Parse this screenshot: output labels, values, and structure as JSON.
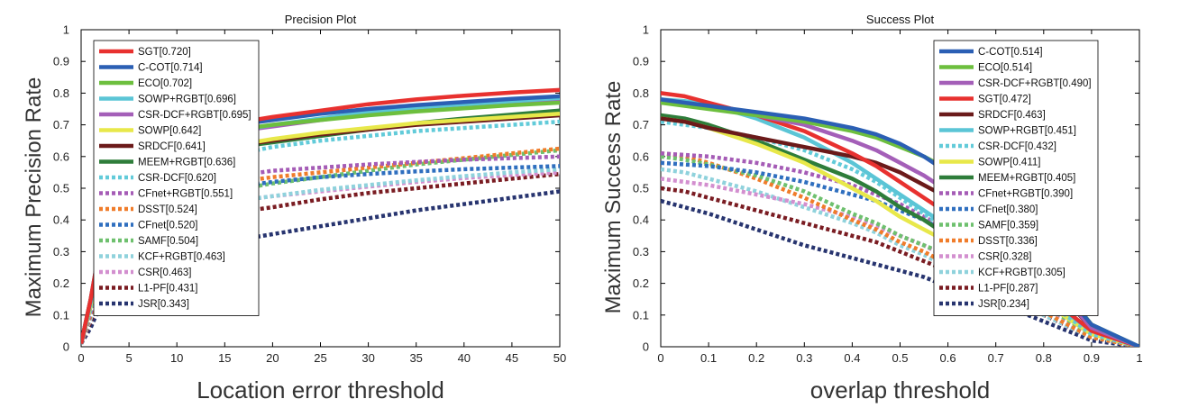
{
  "chart_data": [
    {
      "type": "line",
      "title": "Precision Plot",
      "xlabel": "Location error threshold",
      "ylabel": "Maximum Precision Rate",
      "xlim": [
        0,
        50
      ],
      "ylim": [
        0,
        1
      ],
      "xticks": [
        0,
        5,
        10,
        15,
        20,
        25,
        30,
        35,
        40,
        45,
        50
      ],
      "yticks": [
        0,
        0.1,
        0.2,
        0.3,
        0.4,
        0.5,
        0.6,
        0.7,
        0.8,
        0.9,
        1
      ],
      "x": [
        0,
        1,
        2,
        5,
        10,
        15,
        20,
        25,
        30,
        35,
        40,
        45,
        50
      ],
      "legend_position": "top-left",
      "series": [
        {
          "name": "SGT[0.720]",
          "color": "#e8312f",
          "dashed": false,
          "values": [
            0.01,
            0.15,
            0.32,
            0.55,
            0.66,
            0.7,
            0.725,
            0.745,
            0.765,
            0.78,
            0.792,
            0.802,
            0.81
          ]
        },
        {
          "name": "C-COT[0.714]",
          "color": "#2b5fb4",
          "dashed": false,
          "values": [
            0.01,
            0.15,
            0.32,
            0.54,
            0.65,
            0.695,
            0.715,
            0.735,
            0.75,
            0.762,
            0.772,
            0.782,
            0.79
          ]
        },
        {
          "name": "ECO[0.702]",
          "color": "#6dbf3e",
          "dashed": false,
          "values": [
            0.01,
            0.15,
            0.31,
            0.53,
            0.64,
            0.68,
            0.7,
            0.715,
            0.73,
            0.742,
            0.752,
            0.762,
            0.77
          ]
        },
        {
          "name": "SOWP+RGBT[0.696]",
          "color": "#5bc5d6",
          "dashed": false,
          "values": [
            0.01,
            0.14,
            0.3,
            0.52,
            0.63,
            0.675,
            0.7,
            0.72,
            0.74,
            0.755,
            0.765,
            0.775,
            0.785
          ]
        },
        {
          "name": "CSR-DCF+RGBT[0.695]",
          "color": "#a45fb8",
          "dashed": false,
          "values": [
            0.01,
            0.14,
            0.3,
            0.52,
            0.63,
            0.675,
            0.695,
            0.715,
            0.735,
            0.75,
            0.762,
            0.772,
            0.78
          ]
        },
        {
          "name": "SOWP[0.642]",
          "color": "#e8e84a",
          "dashed": false,
          "values": [
            0.01,
            0.13,
            0.28,
            0.49,
            0.59,
            0.63,
            0.655,
            0.675,
            0.69,
            0.705,
            0.715,
            0.725,
            0.735
          ]
        },
        {
          "name": "SRDCF[0.641]",
          "color": "#6b1a1a",
          "dashed": false,
          "values": [
            0.01,
            0.13,
            0.28,
            0.49,
            0.59,
            0.63,
            0.65,
            0.67,
            0.685,
            0.7,
            0.71,
            0.72,
            0.73
          ]
        },
        {
          "name": "MEEM+RGBT[0.636]",
          "color": "#2e7d3a",
          "dashed": false,
          "values": [
            0.01,
            0.13,
            0.27,
            0.48,
            0.58,
            0.625,
            0.645,
            0.665,
            0.685,
            0.705,
            0.72,
            0.732,
            0.745
          ]
        },
        {
          "name": "CSR-DCF[0.620]",
          "color": "#62cbd9",
          "dashed": true,
          "values": [
            0.01,
            0.12,
            0.26,
            0.46,
            0.56,
            0.6,
            0.63,
            0.65,
            0.665,
            0.68,
            0.69,
            0.7,
            0.71
          ]
        },
        {
          "name": "CFnet+RGBT[0.551]",
          "color": "#a55cb6",
          "dashed": true,
          "values": [
            0.01,
            0.11,
            0.23,
            0.41,
            0.5,
            0.535,
            0.555,
            0.565,
            0.575,
            0.583,
            0.59,
            0.595,
            0.6
          ]
        },
        {
          "name": "DSST[0.524]",
          "color": "#f07c2a",
          "dashed": true,
          "values": [
            0.01,
            0.1,
            0.22,
            0.39,
            0.48,
            0.515,
            0.535,
            0.55,
            0.565,
            0.58,
            0.595,
            0.61,
            0.625
          ]
        },
        {
          "name": "CFnet[0.520]",
          "color": "#2f6fbf",
          "dashed": true,
          "values": [
            0.01,
            0.1,
            0.22,
            0.39,
            0.47,
            0.5,
            0.52,
            0.535,
            0.545,
            0.553,
            0.56,
            0.565,
            0.57
          ]
        },
        {
          "name": "SAMF[0.504]",
          "color": "#6ec06e",
          "dashed": true,
          "values": [
            0.01,
            0.1,
            0.21,
            0.38,
            0.46,
            0.49,
            0.515,
            0.535,
            0.555,
            0.575,
            0.59,
            0.605,
            0.62
          ]
        },
        {
          "name": "KCF+RGBT[0.463]",
          "color": "#8fd2dc",
          "dashed": true,
          "values": [
            0.01,
            0.09,
            0.19,
            0.34,
            0.42,
            0.455,
            0.475,
            0.495,
            0.51,
            0.525,
            0.538,
            0.55,
            0.56
          ]
        },
        {
          "name": "CSR[0.463]",
          "color": "#d38fcf",
          "dashed": true,
          "values": [
            0.01,
            0.09,
            0.19,
            0.34,
            0.42,
            0.455,
            0.475,
            0.49,
            0.505,
            0.52,
            0.532,
            0.542,
            0.55
          ]
        },
        {
          "name": "L1-PF[0.431]",
          "color": "#7a1c22",
          "dashed": true,
          "values": [
            0.01,
            0.08,
            0.17,
            0.31,
            0.39,
            0.42,
            0.44,
            0.465,
            0.485,
            0.5,
            0.515,
            0.53,
            0.545
          ]
        },
        {
          "name": "JSR[0.343]",
          "color": "#27346f",
          "dashed": true,
          "values": [
            0.01,
            0.06,
            0.13,
            0.24,
            0.3,
            0.33,
            0.355,
            0.38,
            0.405,
            0.43,
            0.45,
            0.47,
            0.49
          ]
        }
      ]
    },
    {
      "type": "line",
      "title": "Success Plot",
      "xlabel": "overlap threshold",
      "ylabel": "Maximum Success Rate",
      "xlim": [
        0,
        1
      ],
      "ylim": [
        0,
        1
      ],
      "xticks": [
        0,
        0.1,
        0.2,
        0.3,
        0.4,
        0.5,
        0.6,
        0.7,
        0.8,
        0.9,
        1
      ],
      "yticks": [
        0,
        0.1,
        0.2,
        0.3,
        0.4,
        0.5,
        0.6,
        0.7,
        0.8,
        0.9,
        1
      ],
      "x": [
        0,
        0.05,
        0.1,
        0.2,
        0.3,
        0.4,
        0.45,
        0.5,
        0.55,
        0.6,
        0.7,
        0.8,
        0.9,
        1.0
      ],
      "legend_position": "top-right",
      "series": [
        {
          "name": "C-COT[0.514]",
          "color": "#2b5fb4",
          "dashed": false,
          "values": [
            0.78,
            0.77,
            0.76,
            0.74,
            0.72,
            0.69,
            0.67,
            0.64,
            0.6,
            0.55,
            0.43,
            0.25,
            0.07,
            0.0
          ]
        },
        {
          "name": "ECO[0.514]",
          "color": "#6dbf3e",
          "dashed": false,
          "values": [
            0.77,
            0.76,
            0.75,
            0.73,
            0.71,
            0.68,
            0.66,
            0.63,
            0.6,
            0.56,
            0.44,
            0.26,
            0.07,
            0.0
          ]
        },
        {
          "name": "CSR-DCF+RGBT[0.490]",
          "color": "#a45fb8",
          "dashed": false,
          "values": [
            0.77,
            0.765,
            0.755,
            0.73,
            0.7,
            0.65,
            0.62,
            0.58,
            0.54,
            0.49,
            0.38,
            0.23,
            0.06,
            0.0
          ]
        },
        {
          "name": "SGT[0.472]",
          "color": "#e8312f",
          "dashed": false,
          "values": [
            0.8,
            0.79,
            0.77,
            0.73,
            0.68,
            0.61,
            0.57,
            0.52,
            0.47,
            0.42,
            0.31,
            0.17,
            0.05,
            0.0
          ]
        },
        {
          "name": "SRDCF[0.463]",
          "color": "#6b1a1a",
          "dashed": false,
          "values": [
            0.72,
            0.71,
            0.69,
            0.66,
            0.63,
            0.6,
            0.58,
            0.55,
            0.51,
            0.47,
            0.37,
            0.22,
            0.06,
            0.0
          ]
        },
        {
          "name": "SOWP+RGBT[0.451]",
          "color": "#5bc5d6",
          "dashed": false,
          "values": [
            0.78,
            0.775,
            0.765,
            0.72,
            0.66,
            0.58,
            0.53,
            0.48,
            0.43,
            0.38,
            0.28,
            0.16,
            0.05,
            0.0
          ]
        },
        {
          "name": "CSR-DCF[0.432]",
          "color": "#62cbd9",
          "dashed": true,
          "values": [
            0.71,
            0.7,
            0.69,
            0.66,
            0.62,
            0.56,
            0.52,
            0.47,
            0.42,
            0.37,
            0.27,
            0.15,
            0.04,
            0.0
          ]
        },
        {
          "name": "SOWP[0.411]",
          "color": "#e8e84a",
          "dashed": false,
          "values": [
            0.72,
            0.71,
            0.69,
            0.64,
            0.58,
            0.5,
            0.46,
            0.41,
            0.37,
            0.33,
            0.25,
            0.14,
            0.04,
            0.0
          ]
        },
        {
          "name": "MEEM+RGBT[0.405]",
          "color": "#2e7d3a",
          "dashed": false,
          "values": [
            0.73,
            0.72,
            0.7,
            0.65,
            0.59,
            0.53,
            0.49,
            0.44,
            0.4,
            0.35,
            0.26,
            0.15,
            0.05,
            0.0
          ]
        },
        {
          "name": "CFnet+RGBT[0.390]",
          "color": "#a55cb6",
          "dashed": true,
          "values": [
            0.61,
            0.605,
            0.6,
            0.58,
            0.55,
            0.51,
            0.48,
            0.45,
            0.41,
            0.37,
            0.28,
            0.16,
            0.05,
            0.0
          ]
        },
        {
          "name": "CFnet[0.380]",
          "color": "#2f6fbf",
          "dashed": true,
          "values": [
            0.58,
            0.575,
            0.57,
            0.55,
            0.52,
            0.48,
            0.46,
            0.43,
            0.4,
            0.36,
            0.27,
            0.15,
            0.05,
            0.0
          ]
        },
        {
          "name": "SAMF[0.359]",
          "color": "#6ec06e",
          "dashed": true,
          "values": [
            0.6,
            0.59,
            0.575,
            0.54,
            0.49,
            0.42,
            0.39,
            0.35,
            0.32,
            0.29,
            0.22,
            0.13,
            0.04,
            0.0
          ]
        },
        {
          "name": "DSST[0.336]",
          "color": "#f07c2a",
          "dashed": true,
          "values": [
            0.61,
            0.6,
            0.58,
            0.53,
            0.47,
            0.4,
            0.37,
            0.33,
            0.3,
            0.26,
            0.19,
            0.11,
            0.03,
            0.0
          ]
        },
        {
          "name": "CSR[0.328]",
          "color": "#d38fcf",
          "dashed": true,
          "values": [
            0.53,
            0.52,
            0.51,
            0.48,
            0.45,
            0.41,
            0.38,
            0.35,
            0.32,
            0.28,
            0.21,
            0.12,
            0.04,
            0.0
          ]
        },
        {
          "name": "KCF+RGBT[0.305]",
          "color": "#8fd2dc",
          "dashed": true,
          "values": [
            0.56,
            0.55,
            0.53,
            0.49,
            0.44,
            0.39,
            0.36,
            0.32,
            0.29,
            0.25,
            0.18,
            0.1,
            0.03,
            0.0
          ]
        },
        {
          "name": "L1-PF[0.287]",
          "color": "#7a1c22",
          "dashed": true,
          "values": [
            0.5,
            0.49,
            0.47,
            0.43,
            0.39,
            0.35,
            0.33,
            0.3,
            0.27,
            0.24,
            0.17,
            0.1,
            0.03,
            0.0
          ]
        },
        {
          "name": "JSR[0.234]",
          "color": "#27346f",
          "dashed": true,
          "values": [
            0.46,
            0.44,
            0.42,
            0.37,
            0.32,
            0.28,
            0.26,
            0.24,
            0.22,
            0.19,
            0.14,
            0.08,
            0.02,
            0.0
          ]
        }
      ]
    }
  ]
}
